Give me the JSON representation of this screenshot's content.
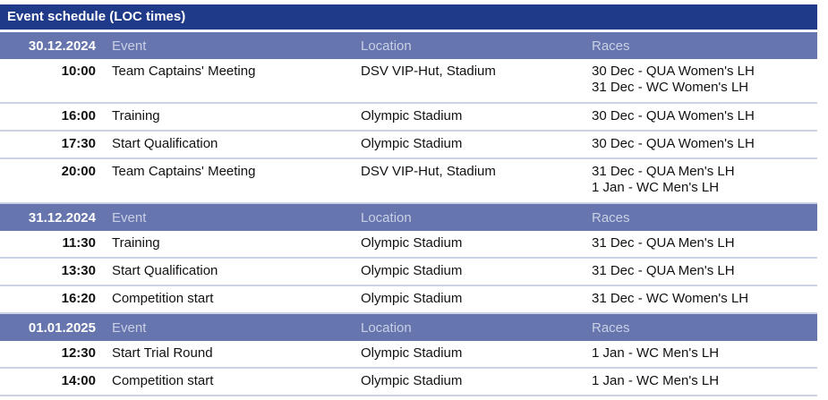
{
  "title": "Event schedule (LOC times)",
  "columns": {
    "event": "Event",
    "location": "Location",
    "races": "Races"
  },
  "days": [
    {
      "date": "30.12.2024",
      "rows": [
        {
          "time": "10:00",
          "event": "Team Captains' Meeting",
          "location": "DSV VIP-Hut, Stadium",
          "races": [
            "30 Dec - QUA Women's LH",
            "31 Dec - WC Women's LH"
          ]
        },
        {
          "time": "16:00",
          "event": "Training",
          "location": "Olympic Stadium",
          "races": [
            "30 Dec - QUA Women's LH"
          ]
        },
        {
          "time": "17:30",
          "event": "Start Qualification",
          "location": "Olympic Stadium",
          "races": [
            "30 Dec - QUA Women's LH"
          ]
        },
        {
          "time": "20:00",
          "event": "Team Captains' Meeting",
          "location": "DSV VIP-Hut, Stadium",
          "races": [
            "31 Dec - QUA Men's LH",
            "1 Jan - WC Men's LH"
          ]
        }
      ]
    },
    {
      "date": "31.12.2024",
      "rows": [
        {
          "time": "11:30",
          "event": "Training",
          "location": "Olympic Stadium",
          "races": [
            "31 Dec - QUA Men's LH"
          ]
        },
        {
          "time": "13:30",
          "event": "Start Qualification",
          "location": "Olympic Stadium",
          "races": [
            "31 Dec - QUA Men's LH"
          ]
        },
        {
          "time": "16:20",
          "event": "Competition start",
          "location": "Olympic Stadium",
          "races": [
            "31 Dec - WC Women's LH"
          ]
        }
      ]
    },
    {
      "date": "01.01.2025",
      "rows": [
        {
          "time": "12:30",
          "event": "Start Trial Round",
          "location": "Olympic Stadium",
          "races": [
            "1 Jan - WC Men's LH"
          ]
        },
        {
          "time": "14:00",
          "event": "Competition start",
          "location": "Olympic Stadium",
          "races": [
            "1 Jan - WC Men's LH"
          ]
        }
      ]
    }
  ]
}
